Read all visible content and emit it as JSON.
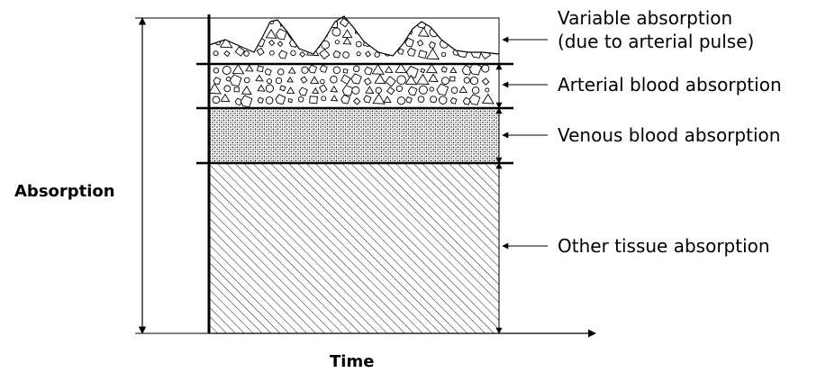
{
  "y_axis_label": "Absorption",
  "x_axis_label": "Time",
  "layers": [
    {
      "key": "variable",
      "label_lines": [
        "Variable absorption",
        "(due to arterial pulse)"
      ],
      "pattern": "particles-wavy"
    },
    {
      "key": "arterial",
      "label_lines": [
        "Arterial blood absorption"
      ],
      "pattern": "particles"
    },
    {
      "key": "venous",
      "label_lines": [
        "Venous blood absorption"
      ],
      "pattern": "stipple"
    },
    {
      "key": "tissue",
      "label_lines": [
        "Other tissue absorption"
      ],
      "pattern": "hatch"
    }
  ]
}
